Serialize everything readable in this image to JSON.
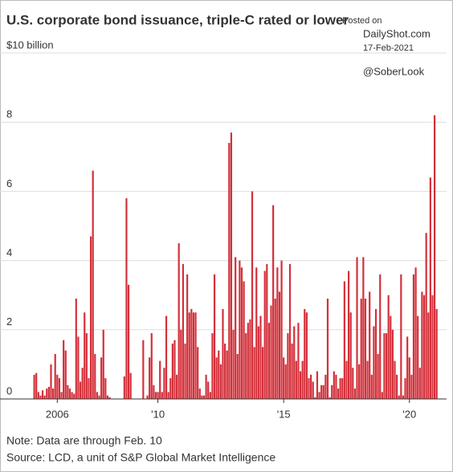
{
  "chart_data": {
    "type": "bar",
    "title": "U.S. corporate bond issuance, triple-C rated or lower",
    "watermark": [
      "Posted on",
      "DailyShot.com",
      "17-Feb-2021",
      "@SoberLook"
    ],
    "note": "Note: Data are through Feb. 10",
    "source": "Source: LCD, a unit of S&P Global Market Intelligence",
    "color": "#d3303a",
    "grid": true,
    "ylim": [
      0,
      10
    ],
    "yticks": [
      0,
      2,
      4,
      6,
      8,
      {
        "value": 10,
        "label": "$10 billion"
      }
    ],
    "categories": [
      null,
      null,
      null,
      null,
      null,
      null,
      null,
      null,
      null,
      null,
      null,
      null,
      "2006",
      null,
      null,
      null,
      null,
      null,
      null,
      null,
      null,
      null,
      null,
      null,
      null,
      null,
      null,
      null,
      null,
      null,
      null,
      null,
      null,
      null,
      null,
      null,
      null,
      null,
      null,
      null,
      null,
      null,
      null,
      null,
      null,
      null,
      null,
      null,
      null,
      null,
      null,
      null,
      null,
      null,
      null,
      null,
      null,
      null,
      null,
      null,
      "'10",
      null,
      null,
      null,
      null,
      null,
      null,
      null,
      null,
      null,
      null,
      null,
      null,
      null,
      null,
      null,
      null,
      null,
      null,
      null,
      null,
      null,
      null,
      null,
      null,
      null,
      null,
      null,
      null,
      null,
      null,
      null,
      null,
      null,
      null,
      null,
      null,
      null,
      null,
      null,
      null,
      null,
      null,
      null,
      null,
      null,
      null,
      null,
      null,
      null,
      null,
      null,
      null,
      null,
      null,
      null,
      null,
      null,
      null,
      null,
      "'15",
      null,
      null,
      null,
      null,
      null,
      null,
      null,
      null,
      null,
      null,
      null,
      null,
      null,
      null,
      null,
      null,
      null,
      null,
      null,
      null,
      null,
      null,
      null,
      null,
      null,
      null,
      null,
      null,
      null,
      null,
      null,
      null,
      null,
      null,
      null,
      null,
      null,
      null,
      null,
      null,
      null,
      null,
      null,
      null,
      null,
      null,
      null,
      null,
      null,
      null,
      null,
      null,
      null,
      null,
      null,
      null,
      null,
      null,
      null,
      "'20",
      null,
      null,
      null,
      null,
      null,
      null,
      null,
      null,
      null,
      null,
      null,
      null,
      null
    ],
    "values": [
      0,
      0.7,
      0.75,
      0.2,
      0.1,
      0.25,
      0.1,
      0.3,
      0.35,
      1.0,
      0.3,
      1.3,
      0.7,
      0.6,
      0.2,
      1.7,
      1.4,
      0.4,
      0.3,
      0.2,
      0.15,
      2.9,
      1.8,
      0.5,
      0.9,
      2.5,
      1.9,
      0.6,
      4.7,
      6.6,
      1.3,
      0.2,
      0.1,
      1.2,
      2.0,
      0.6,
      0.1,
      0.05,
      0,
      0,
      0,
      0,
      0,
      0,
      0.65,
      5.8,
      3.3,
      0.75,
      0,
      0,
      0,
      0,
      0,
      1.7,
      0,
      0.1,
      1.2,
      1.9,
      0.4,
      0.2,
      0.2,
      1.1,
      0.2,
      0.9,
      2.4,
      0.2,
      0.6,
      1.6,
      1.7,
      0.7,
      4.5,
      2.0,
      3.9,
      1.6,
      3.6,
      2.5,
      2.6,
      2.5,
      2.5,
      1.5,
      0.3,
      0.1,
      0.1,
      0.7,
      0.5,
      0.2,
      1.9,
      3.6,
      1.2,
      1.4,
      1.0,
      2.6,
      1.6,
      1.4,
      7.4,
      7.7,
      2.0,
      4.1,
      1.3,
      4.0,
      3.8,
      3.4,
      1.9,
      2.2,
      2.3,
      6.0,
      1.5,
      3.8,
      2.1,
      2.4,
      1.5,
      3.7,
      3.9,
      2.2,
      2.7,
      5.6,
      2.9,
      3.8,
      3.1,
      4.0,
      1.2,
      1.0,
      1.9,
      3.9,
      1.6,
      2.1,
      1.1,
      2.2,
      0.8,
      1.1,
      2.6,
      2.5,
      0.6,
      0.7,
      0.5,
      0.05,
      0.8,
      0.2,
      0.4,
      0.4,
      0.7,
      2.9,
      0.05,
      0.4,
      0.8,
      0.7,
      0.3,
      0.6,
      0.6,
      3.4,
      1.1,
      3.7,
      2.5,
      0.9,
      0.3,
      4.1,
      1.0,
      2.9,
      4.1,
      2.9,
      1.1,
      3.1,
      0.7,
      2.1,
      2.6,
      1.3,
      3.6,
      0.2,
      1.9,
      1.9,
      3.0,
      2.4,
      2.0,
      1.1,
      0.7,
      0.1,
      3.6,
      0.1,
      0.6,
      1.8,
      1.2,
      0.7,
      3.6,
      3.8,
      2.4,
      0.9,
      3.1,
      3.0,
      4.8,
      2.5,
      6.4,
      3.0,
      8.2,
      2.6
    ]
  }
}
